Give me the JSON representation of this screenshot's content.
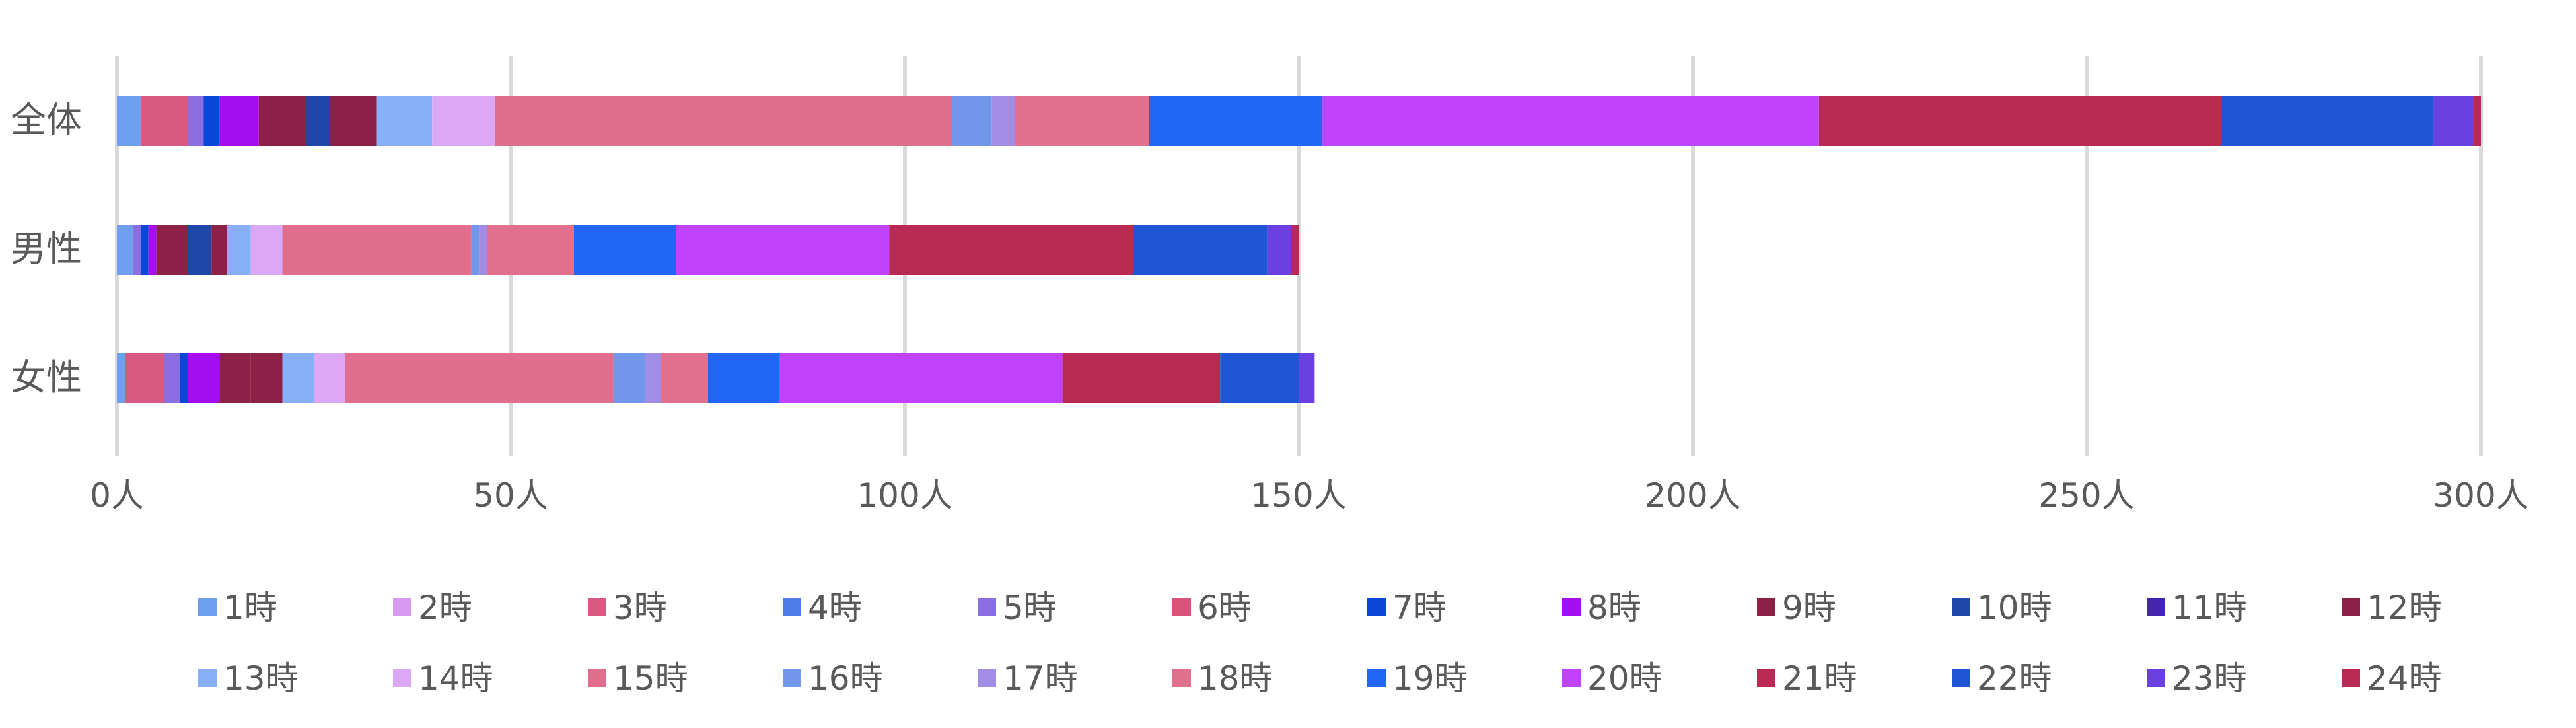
{
  "chart_data": {
    "type": "bar",
    "orientation": "horizontal",
    "stacked": true,
    "grid": true,
    "legend_position": "bottom",
    "categories": [
      "全体",
      "男性",
      "女性"
    ],
    "x_ticks": [
      "0人",
      "50人",
      "100人",
      "150人",
      "200人",
      "250人",
      "300人"
    ],
    "xlim": [
      0,
      300
    ],
    "series": [
      {
        "name": "1時",
        "color": "#6fa0f0",
        "values": [
          3,
          2,
          1
        ]
      },
      {
        "name": "2時",
        "color": "#d89af0",
        "values": [
          0,
          0,
          0
        ]
      },
      {
        "name": "3時",
        "color": "#d85a82",
        "values": [
          6,
          0,
          5
        ]
      },
      {
        "name": "4時",
        "color": "#4f7be8",
        "values": [
          0,
          0,
          0
        ]
      },
      {
        "name": "5時",
        "color": "#8b6ee0",
        "values": [
          2,
          1,
          2
        ]
      },
      {
        "name": "6時",
        "color": "#d9547a",
        "values": [
          0,
          0,
          0
        ]
      },
      {
        "name": "7時",
        "color": "#0a47d6",
        "values": [
          2,
          1,
          1
        ]
      },
      {
        "name": "8時",
        "color": "#a40ef0",
        "values": [
          5,
          1,
          4
        ]
      },
      {
        "name": "9時",
        "color": "#8c2046",
        "values": [
          6,
          4,
          4
        ]
      },
      {
        "name": "10時",
        "color": "#1f47aa",
        "values": [
          3,
          3,
          0
        ]
      },
      {
        "name": "11時",
        "color": "#4326b0",
        "values": [
          0,
          0,
          0
        ]
      },
      {
        "name": "12時",
        "color": "#8c2046",
        "values": [
          6,
          2,
          4
        ]
      },
      {
        "name": "13時",
        "color": "#88b0f8",
        "values": [
          7,
          3,
          4
        ]
      },
      {
        "name": "14時",
        "color": "#dca8f5",
        "values": [
          8,
          4,
          4
        ]
      },
      {
        "name": "15時",
        "color": "#e06e8c",
        "values": [
          58,
          24,
          34
        ]
      },
      {
        "name": "16時",
        "color": "#7196ea",
        "values": [
          5,
          1,
          4
        ]
      },
      {
        "name": "17時",
        "color": "#a18ce6",
        "values": [
          3,
          1,
          2
        ]
      },
      {
        "name": "18時",
        "color": "#e0708e",
        "values": [
          17,
          11,
          6
        ]
      },
      {
        "name": "19時",
        "color": "#2166f5",
        "values": [
          22,
          13,
          9
        ]
      },
      {
        "name": "20時",
        "color": "#c042fa",
        "values": [
          63,
          27,
          36
        ]
      },
      {
        "name": "21時",
        "color": "#b82a54",
        "values": [
          51,
          31,
          20
        ]
      },
      {
        "name": "22時",
        "color": "#1f56d6",
        "values": [
          27,
          17,
          10
        ]
      },
      {
        "name": "23時",
        "color": "#6a40e0",
        "values": [
          5,
          3,
          2
        ]
      },
      {
        "name": "24時",
        "color": "#b82a54",
        "values": [
          1,
          1,
          0
        ]
      }
    ]
  }
}
